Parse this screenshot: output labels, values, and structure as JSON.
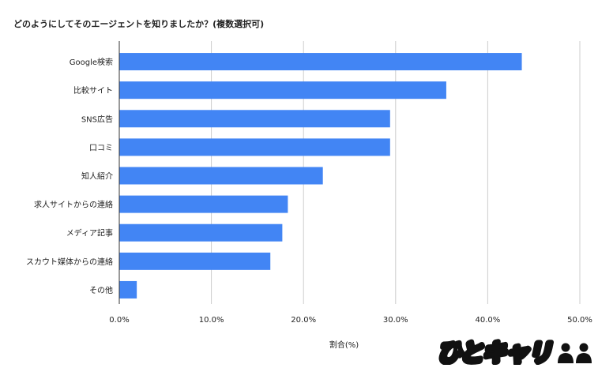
{
  "chart_data": {
    "type": "bar",
    "orientation": "horizontal",
    "title": "どのようにしてそのエージェントを知りましたか？(複数選択可)",
    "xlabel": "割合(%)",
    "ylabel": "",
    "categories": [
      "Google検索",
      "比較サイト",
      "SNS広告",
      "口コミ",
      "知人紹介",
      "求人サイトからの連絡",
      "メディア記事",
      "スカウト媒体からの連絡",
      "その他"
    ],
    "values": [
      43.7,
      35.5,
      29.4,
      29.4,
      22.1,
      18.3,
      17.7,
      16.4,
      1.9
    ],
    "xlim": [
      0,
      50
    ],
    "x_ticks": [
      "0.0%",
      "10.0%",
      "20.0%",
      "30.0%",
      "40.0%",
      "50.0%"
    ],
    "bar_color": "#4285f4",
    "grid": true,
    "legend": "none"
  },
  "logo": {
    "text": "ひとキャリ"
  }
}
